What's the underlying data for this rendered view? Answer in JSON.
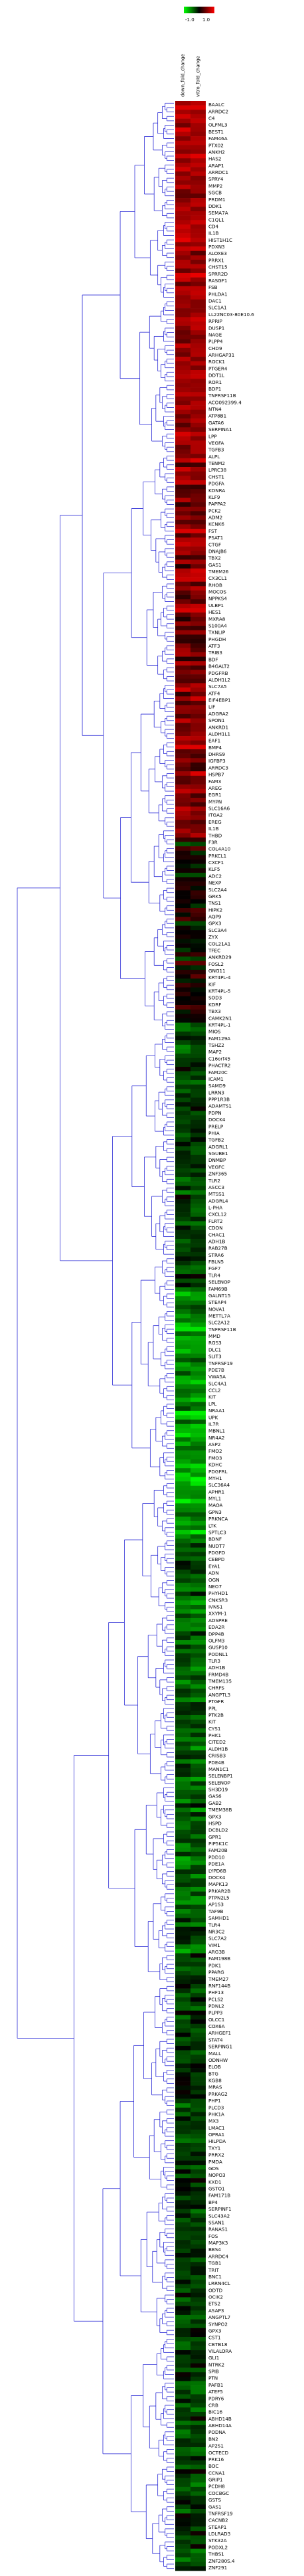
{
  "chart_data": {
    "type": "heatmap",
    "title": "",
    "legend": {
      "placement": "top-center",
      "min_label": "-1.0",
      "max_label": "1.0",
      "low_color": "#00ff00",
      "mid_color": "#000000",
      "high_color": "#ff0000"
    },
    "columns": [
      "down_fold_change",
      "vitro_fold_change"
    ],
    "dendrogram": {
      "side": "left",
      "color": "#2b2bd6"
    },
    "row_count": 560,
    "visible_row_labels": [
      "BAALC",
      "ARRDC2",
      "C4",
      "OLFML3",
      "BEST1",
      "FAM46A",
      "PTX02",
      "ANKH2",
      "HAS2",
      "ARAP1",
      "ARRDC1",
      "SPRY4",
      "MMP2",
      "SGCB",
      "PRDM1",
      "DDK1",
      "SEMA7A",
      "C1QL1",
      "CD4",
      "IL1B",
      "HIST1H1C",
      "PDXN3",
      "ALOXE3",
      "PRRX1",
      "CHST15",
      "SPRR2D",
      "RASGF1",
      "FSB",
      "PHLDA1",
      "DAC1",
      "SLC1A1",
      "LL22NC03-80E10.6",
      "RPRIP",
      "DUSP1",
      "NAGE",
      "PLPP4",
      "CHD9",
      "ARHGAP31",
      "ROCK1",
      "PTGER4",
      "DDT1L",
      "ROR1",
      "BDP1",
      "TNFRSF11B",
      "ACO092399.4",
      "NTN4",
      "ATP8B1",
      "GATA6",
      "SERPINA1",
      "LPP",
      "VEGFA",
      "TGFB3",
      "ALPL",
      "TENM2",
      "LPRC38",
      "CHST1",
      "PDGFA",
      "KDNRA",
      "KLF9",
      "PAPPA2",
      "PCK2",
      "ADM2",
      "KCNK6",
      "FST",
      "PSAT1",
      "CTGF",
      "DNAJB6",
      "TBX2",
      "GAS1",
      "TMEM26",
      "CX3CL1",
      "RHOB",
      "MOCOS",
      "NPPKS4",
      "ULBP1",
      "HES1",
      "MXRA8",
      "S100A4",
      "TXNLIP",
      "PHGDH",
      "ATF3",
      "TRIB3",
      "BDF",
      "B4GALT2",
      "PDGFRB",
      "ALDH1L2",
      "SLC7A5",
      "ATF4",
      "EIF4EBP1",
      "LIF",
      "ADGRA2",
      "SPON1",
      "ANKRD1",
      "ALDH1L1",
      "EAF1",
      "BMP4",
      "DHRS9",
      "IGFBP3",
      "ARRDC3",
      "HSPB7",
      "FAM3",
      "AREG",
      "EGR1",
      "MYPN",
      "SLC16A6",
      "ITGA2",
      "EREG",
      "IL1B",
      "THBD",
      "F3R",
      "COL4A10",
      "PRKCL1",
      "CXCF1",
      "KLF5",
      "ADC2",
      "NEXP",
      "SLC2A4",
      "GRK5",
      "TNS1",
      "HIPK2",
      "AQP9",
      "GPX3",
      "SLC3A4",
      "ZYX",
      "COL21A1",
      "TFEC",
      "ANKRD29",
      "FOSL2",
      "GNG11",
      "KRT4PL-4",
      "KIF",
      "KRT4PL-5",
      "SOD3",
      "KDRF",
      "TBX3",
      "CAMK2N1",
      "KRT4PL-1",
      "MIOS",
      "FAM129A",
      "TSHZ2",
      "MAP2",
      "C16orf45",
      "PHACTR2",
      "FAM20C",
      "ICAM1",
      "SAMD9",
      "LRRN3",
      "PPP1R3B",
      "ADAMTS1",
      "PDPN",
      "DOCK4",
      "PRELP",
      "PHIA",
      "TGFB2",
      "ADGRL1",
      "SGUBE1",
      "DNMBP",
      "VEGFC",
      "ZNF365",
      "TLR2",
      "ASCC3",
      "MTSS1",
      "ADGRL4",
      "L-PHA",
      "CXCL12",
      "FLRT2",
      "CDON",
      "CHAC1",
      "ADH1B",
      "RAB27B",
      "STRA6",
      "FBLN5",
      "FGF7",
      "TLR4",
      "SELENOP",
      "FAM69B",
      "GALNT15",
      "STEAP4",
      "NOVA1",
      "METTL7A",
      "SLC2A12",
      "TNFRSF11B",
      "MMD",
      "RGS3",
      "DLC1",
      "SLIT3",
      "TNFRSF19",
      "PDE7B",
      "VWA5A",
      "SLC4A1",
      "CCL2",
      "KIT",
      "LPL",
      "NRAA1",
      "UPK",
      "IL7R",
      "MBNL1",
      "NR4A2",
      "ASP2",
      "FMO2",
      "FMO3",
      "KDHC",
      "PDGFRL",
      "MYH1",
      "SLC36A4",
      "APHR1",
      "MYL1",
      "MAOA",
      "GPN3",
      "PRKNCA",
      "LTK",
      "SPTLC3",
      "BDNF",
      "NUDT7",
      "PDGFD",
      "CEBPD",
      "EYA1",
      "ADN",
      "OGN",
      "NEO7",
      "PHYHD1",
      "CNKSR3",
      "IVNS1",
      "XXYM-1",
      "ADSPRE",
      "EDA2R",
      "DPP4B",
      "OLFM3",
      "GUSP10",
      "PODNL1",
      "TLR3",
      "ADH1B",
      "FRMD4B",
      "TMEM135",
      "CHRFS",
      "ANGPTL3",
      "PTGFR",
      "PPL",
      "PTK2B",
      "KIT",
      "CYS1",
      "PHK1",
      "CITED2",
      "ALDH1B",
      "CRISB3",
      "PDE4B",
      "MAN1C1",
      "SELENBP1",
      "SELENOP",
      "SH3D19",
      "GAS6",
      "GAB2",
      "TMEM38B",
      "GPX3",
      "HSPD",
      "DCBLD2",
      "GPR1",
      "PIP5K1C",
      "FAM20B",
      "PDD10",
      "PDE1A",
      "LYPD6B",
      "DOCK4",
      "MAPK13",
      "PRKAR2B",
      "PTPN2L5",
      "AP1S3",
      "TAF9B",
      "SAMHD1",
      "TLR4",
      "NR3C2",
      "SLC7A2",
      "VIM1",
      "ARG3B",
      "FAM198B",
      "PDK1",
      "PPARG",
      "TMEM27",
      "RNF144B",
      "PHF13",
      "PCLS2",
      "PDNL2",
      "PLPP3",
      "OLCC1",
      "COX6A",
      "ARHGEF1",
      "STAT4",
      "SERPING1",
      "MALL",
      "ODNHW",
      "ELOB",
      "BTG",
      "KGB8",
      "MRAS",
      "PRKAG2",
      "PHP1",
      "PLCD3",
      "PHK1A",
      "MX3",
      "LMAC1",
      "OPRA1",
      "HILPDA",
      "TXY1",
      "PRRX2",
      "PMDA",
      "GDS",
      "NOPO3",
      "KXD1",
      "GSTO1",
      "FAM171B",
      "BP4",
      "SERPINF1",
      "SLC43A2",
      "SSAN1",
      "RANAS1",
      "FOS",
      "MAP3K3",
      "BBS4",
      "ARRDC4",
      "TGB1",
      "TRIT",
      "BNC1",
      "LRRN4CL",
      "ODTD",
      "OCIK2",
      "ETS2",
      "ASAP3",
      "ANGPTL7",
      "SYNPO2",
      "GPX3",
      "CST1",
      "CBTB18",
      "VILALORA",
      "GLI1",
      "NTRK2",
      "SPIB",
      "PTN",
      "PAFB1",
      "ATEF5",
      "PDRY6",
      "CRB",
      "BIC16",
      "ABHD14B",
      "ABHD14A",
      "PODNA",
      "BN2",
      "AP2S1",
      "OCTECD",
      "PRK16",
      "BOC",
      "CCNA1",
      "GRIP1",
      "PCDH8",
      "COCBGC",
      "GSTS",
      "GAS1",
      "TNFRSF19",
      "CACNB2",
      "STEAP1",
      "LDLRAD3",
      "STK32A",
      "PODXL2",
      "THBS1",
      "ZNF280S.4",
      "ZNF291"
    ]
  }
}
